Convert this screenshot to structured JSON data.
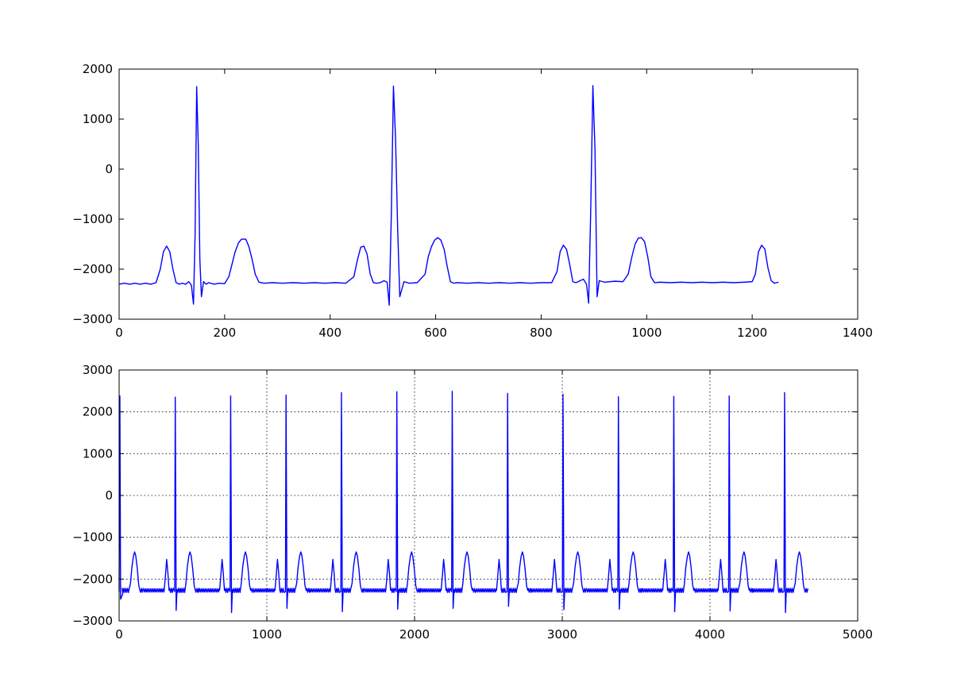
{
  "chart_data": [
    {
      "type": "line",
      "title": "",
      "xlabel": "",
      "ylabel": "",
      "xlim": [
        0,
        1400
      ],
      "ylim": [
        -3000,
        2000
      ],
      "xticks": [
        0,
        200,
        400,
        600,
        800,
        1000,
        1200,
        1400
      ],
      "yticks": [
        -3000,
        -2000,
        -1000,
        0,
        1000,
        2000
      ],
      "xtick_labels": [
        "0",
        "200",
        "400",
        "600",
        "800",
        "1000",
        "1200",
        "1400"
      ],
      "ytick_labels": [
        "−3000",
        "−2000",
        "−1000",
        "0",
        "1000",
        "2000"
      ],
      "grid": false,
      "line_color": "#0000ff",
      "series": [
        {
          "x": [
            0,
            10,
            20,
            30,
            40,
            50,
            60,
            70,
            78,
            84,
            90,
            96,
            102,
            108,
            114,
            120,
            126,
            132,
            137,
            141,
            144,
            147,
            150,
            153,
            156,
            160,
            165,
            170,
            180,
            190,
            200,
            208,
            214,
            220,
            226,
            232,
            240,
            246,
            252,
            258,
            265,
            275,
            290,
            310,
            330,
            350,
            370,
            390,
            410,
            430,
            445,
            452,
            458,
            464,
            470,
            476,
            482,
            488,
            495,
            502,
            508,
            512,
            516,
            520,
            524,
            528,
            532,
            540,
            550,
            565,
            580,
            586,
            592,
            598,
            604,
            610,
            616,
            622,
            628,
            634,
            640,
            660,
            680,
            700,
            720,
            740,
            760,
            780,
            800,
            820,
            830,
            836,
            842,
            848,
            854,
            860,
            866,
            872,
            880,
            886,
            890,
            894,
            898,
            902,
            906,
            910,
            920,
            940,
            955,
            965,
            972,
            978,
            984,
            990,
            996,
            1002,
            1008,
            1015,
            1025,
            1045,
            1065,
            1085,
            1105,
            1125,
            1145,
            1165,
            1185,
            1200,
            1206,
            1212,
            1218,
            1224,
            1230,
            1236,
            1242,
            1250
          ],
          "y": [
            -2300,
            -2280,
            -2300,
            -2280,
            -2300,
            -2280,
            -2300,
            -2270,
            -2000,
            -1650,
            -1540,
            -1650,
            -2000,
            -2270,
            -2300,
            -2280,
            -2300,
            -2250,
            -2320,
            -2700,
            -1300,
            1650,
            500,
            -1800,
            -2550,
            -2250,
            -2300,
            -2270,
            -2300,
            -2280,
            -2290,
            -2150,
            -1900,
            -1650,
            -1480,
            -1400,
            -1400,
            -1550,
            -1800,
            -2100,
            -2260,
            -2280,
            -2270,
            -2280,
            -2270,
            -2280,
            -2270,
            -2280,
            -2270,
            -2280,
            -2150,
            -1800,
            -1560,
            -1540,
            -1700,
            -2100,
            -2270,
            -2280,
            -2270,
            -2230,
            -2260,
            -2720,
            -900,
            1660,
            600,
            -1200,
            -2550,
            -2250,
            -2280,
            -2270,
            -2100,
            -1750,
            -1550,
            -1420,
            -1370,
            -1420,
            -1600,
            -1950,
            -2250,
            -2280,
            -2270,
            -2280,
            -2270,
            -2280,
            -2270,
            -2280,
            -2270,
            -2280,
            -2270,
            -2270,
            -2050,
            -1650,
            -1520,
            -1600,
            -1900,
            -2250,
            -2270,
            -2240,
            -2200,
            -2300,
            -2680,
            -800,
            1670,
            400,
            -2550,
            -2230,
            -2260,
            -2240,
            -2250,
            -2100,
            -1750,
            -1500,
            -1380,
            -1370,
            -1450,
            -1750,
            -2150,
            -2270,
            -2260,
            -2270,
            -2260,
            -2270,
            -2260,
            -2270,
            -2260,
            -2270,
            -2260,
            -2250,
            -2100,
            -1650,
            -1520,
            -1600,
            -1980,
            -2230,
            -2280,
            -2260
          ]
        }
      ]
    },
    {
      "type": "line",
      "title": "",
      "xlabel": "",
      "ylabel": "",
      "xlim": [
        0,
        5000
      ],
      "ylim": [
        -3000,
        3000
      ],
      "xticks": [
        0,
        1000,
        2000,
        3000,
        4000,
        5000
      ],
      "yticks": [
        -3000,
        -2000,
        -1000,
        0,
        1000,
        2000,
        3000
      ],
      "xtick_labels": [
        "0",
        "1000",
        "2000",
        "3000",
        "4000",
        "5000"
      ],
      "ytick_labels": [
        "−3000",
        "−2000",
        "−1000",
        "0",
        "1000",
        "2000",
        "3000"
      ],
      "grid": true,
      "line_color": "#0000ff",
      "beat_pattern": {
        "baseline": -2270,
        "r_peaks_x": [
          5,
          380,
          755,
          1130,
          1505,
          1880,
          2255,
          2630,
          3005,
          3380,
          3755,
          4130,
          4505
        ],
        "r_peaks_y": [
          2380,
          2350,
          2380,
          2400,
          2460,
          2480,
          2490,
          2440,
          2420,
          2360,
          2370,
          2380,
          2460
        ],
        "s_troughs_y": [
          -2450,
          -2750,
          -2800,
          -2700,
          -2780,
          -2720,
          -2700,
          -2650,
          -2730,
          -2720,
          -2780,
          -2760,
          -2800
        ],
        "t_wave_peak": -1350,
        "p_wave_peak": -1530,
        "end_x": 4530
      }
    }
  ]
}
